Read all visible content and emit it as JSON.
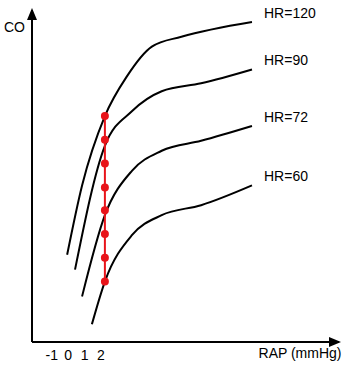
{
  "chart_data": {
    "type": "line",
    "x_label": "RAP (mmHg)",
    "y_label": "CO",
    "xlim": [
      -2.2,
      16.5
    ],
    "ylim": [
      0,
      33.5
    ],
    "xticks": [
      -1,
      0,
      1,
      2
    ],
    "tick_labels": "x",
    "grid": false,
    "series": [
      {
        "name": "HR=120",
        "color": "#000000",
        "marker": "none",
        "x": [
          -0.06,
          0.85,
          2.24,
          3.58,
          5.1,
          6.9,
          11.2
        ],
        "values": [
          8.8,
          15.8,
          22.8,
          26.8,
          29.8,
          30.8,
          32.3
        ]
      },
      {
        "name": "HR=90",
        "color": "#000000",
        "marker": "none",
        "x": [
          0.42,
          2.24,
          3.9,
          5.7,
          8.1,
          11.2
        ],
        "values": [
          7.3,
          19.8,
          23.3,
          25.3,
          26.1,
          27.5
        ]
      },
      {
        "name": "HR=72",
        "color": "#000000",
        "marker": "none",
        "x": [
          0.85,
          2.24,
          3.9,
          5.7,
          8.1,
          11.2
        ],
        "values": [
          4.6,
          12.8,
          17.3,
          19.3,
          20.3,
          21.8
        ]
      },
      {
        "name": "HR=60",
        "color": "#000000",
        "marker": "none",
        "x": [
          1.45,
          2.24,
          3.9,
          5.7,
          8.1,
          11.2
        ],
        "values": [
          1.8,
          6.1,
          10.8,
          12.8,
          13.8,
          15.8
        ]
      },
      {
        "color": "#e8141a",
        "marker": "o",
        "x": [
          2.24,
          2.24,
          2.24,
          2.24,
          2.24,
          2.24,
          2.24,
          2.24
        ],
        "values": [
          6.1,
          8.5,
          10.9,
          13.3,
          15.6,
          18.0,
          20.4,
          22.8
        ]
      }
    ]
  }
}
